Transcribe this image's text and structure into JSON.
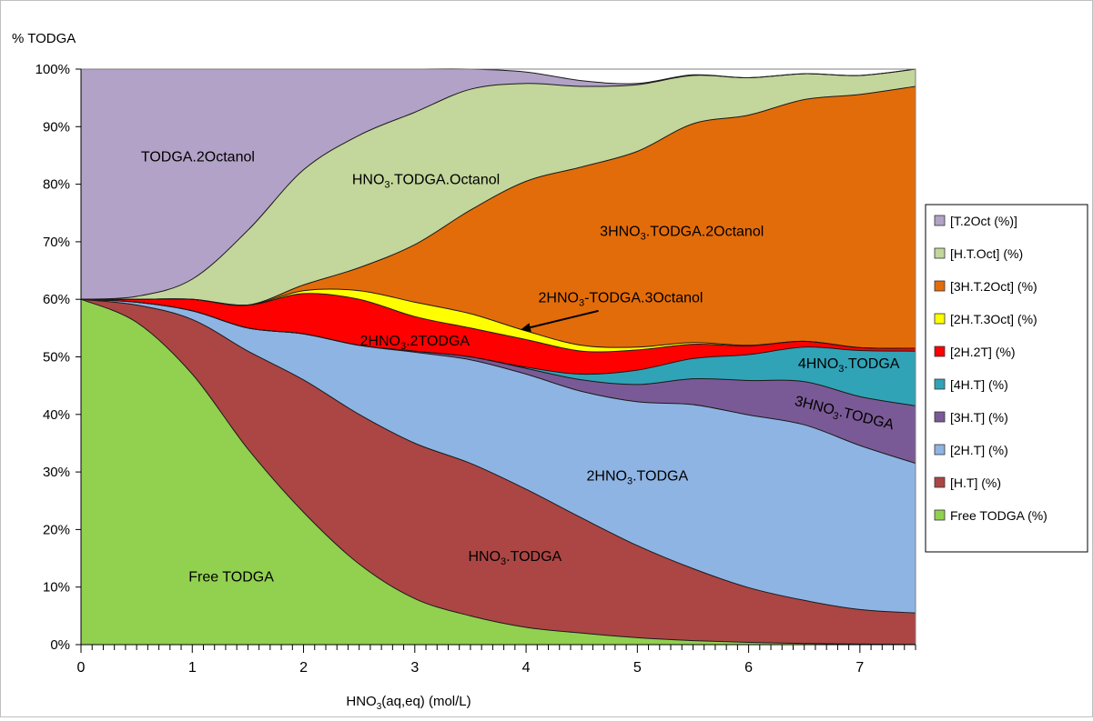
{
  "chart_data": {
    "type": "area",
    "stacked": true,
    "y_axis_title": "% TODGA",
    "x_axis_title": {
      "base": "HNO",
      "sub": "3",
      "rest": "(aq,eq) (mol/L)"
    },
    "xlim": [
      0,
      7.5
    ],
    "ylim": [
      0,
      100
    ],
    "x_ticks": [
      0,
      1,
      2,
      3,
      4,
      5,
      6,
      7
    ],
    "x_minor_step": 0.1,
    "y_ticks": [
      0,
      10,
      20,
      30,
      40,
      50,
      60,
      70,
      80,
      90,
      100
    ],
    "y_tick_labels": [
      "0%",
      "10%",
      "20%",
      "30%",
      "40%",
      "50%",
      "60%",
      "70%",
      "80%",
      "90%",
      "100%"
    ],
    "grid": false,
    "legend_position": "right",
    "x": [
      0,
      0.5,
      1,
      1.5,
      2,
      2.5,
      3,
      3.5,
      4,
      4.5,
      5,
      5.5,
      6,
      6.5,
      7,
      7.5
    ],
    "series": [
      {
        "key": "free",
        "name": "Free TODGA (%)",
        "color": "#92d050",
        "values": [
          60,
          56,
          47,
          34,
          23,
          14,
          8,
          5,
          3,
          2,
          1.2,
          0.7,
          0.4,
          0.2,
          0.1,
          0.05
        ]
      },
      {
        "key": "h_t",
        "name": "[H.T] (%)",
        "color": "#ab4644",
        "values": [
          0,
          3,
          9.5,
          17,
          23,
          26,
          27,
          26.5,
          24,
          20,
          16,
          12.5,
          9.5,
          7.5,
          6,
          5.45
        ]
      },
      {
        "key": "2h_t",
        "name": "[2H.T] (%)",
        "color": "#8eb4e3",
        "values": [
          0,
          0.5,
          1.5,
          4,
          8,
          12,
          15.8,
          18,
          20,
          22,
          25,
          28.5,
          30,
          30.5,
          28.5,
          26
        ]
      },
      {
        "key": "3h_t",
        "name": "[3H.T] (%)",
        "color": "#7a5a96",
        "values": [
          0,
          0,
          0,
          0,
          0,
          0,
          0.2,
          0.5,
          1,
          2,
          3,
          4.5,
          6,
          7.5,
          8.5,
          10
        ]
      },
      {
        "key": "4h_t",
        "name": "[4H.T] (%)",
        "color": "#31a3b7",
        "values": [
          0,
          0,
          0,
          0,
          0,
          0,
          0,
          0,
          0.2,
          1,
          2.5,
          3.5,
          4.5,
          6,
          8,
          9.5
        ]
      },
      {
        "key": "2h_2t",
        "name": "[2H.2T] (%)",
        "color": "#ff0000",
        "values": [
          0,
          0.5,
          2,
          4,
          7,
          8,
          6,
          5,
          4.8,
          4,
          3.5,
          2.5,
          1.5,
          1,
          0.5,
          0.5
        ]
      },
      {
        "key": "2h_t_3oct",
        "name": "[2H.T.3Oct] (%)",
        "color": "#ffff00",
        "values": [
          0,
          0,
          0,
          0,
          0.5,
          1.5,
          2.5,
          2.5,
          1.5,
          1,
          0.5,
          0.3,
          0.1,
          0,
          0,
          0
        ]
      },
      {
        "key": "3h_t_2oct",
        "name": "[3H.T.2Oct] (%)",
        "color": "#e36c0a",
        "values": [
          0,
          0,
          0,
          0,
          1,
          4,
          10,
          18,
          26,
          31,
          34,
          38,
          40,
          42,
          44,
          45.5
        ]
      },
      {
        "key": "h_t_oct",
        "name": "[H.T.Oct] (%)",
        "color": "#c3d69b",
        "values": [
          0,
          0.5,
          3.5,
          13,
          20,
          23,
          23,
          21,
          17,
          14,
          11.6,
          8.4,
          6.5,
          4.5,
          3.3,
          3
        ]
      },
      {
        "key": "t_2oct",
        "name": "[T.2Oct (%)]",
        "color": "#b2a2c7",
        "values": [
          40,
          39.5,
          36.5,
          28,
          17.5,
          11.5,
          7.5,
          3.5,
          2,
          1,
          0.2,
          0.1,
          0,
          0,
          0,
          0
        ]
      }
    ],
    "legend_order": [
      "t_2oct",
      "h_t_oct",
      "3h_t_2oct",
      "2h_t_3oct",
      "2h_2t",
      "4h_t",
      "3h_t",
      "2h_t",
      "h_t",
      "free"
    ],
    "annotations": [
      {
        "series": "t_2oct",
        "at": [
          1.05,
          84
        ],
        "rotate": 0,
        "parts": [
          {
            "t": "TODGA.2Octanol"
          }
        ]
      },
      {
        "series": "h_t_oct",
        "at": [
          3.1,
          80
        ],
        "rotate": 0,
        "parts": [
          {
            "t": "HNO"
          },
          {
            "t": "3",
            "sub": true
          },
          {
            "t": ".TODGA.Octanol"
          }
        ]
      },
      {
        "series": "3h_t_2oct",
        "at": [
          5.4,
          71
        ],
        "rotate": 0,
        "parts": [
          {
            "t": "3HNO"
          },
          {
            "t": "3",
            "sub": true
          },
          {
            "t": ".TODGA.2Octanol"
          }
        ]
      },
      {
        "series": "2h_t_3oct",
        "at": [
          4.85,
          59.5
        ],
        "rotate": 0,
        "parts": [
          {
            "t": "2HNO"
          },
          {
            "t": "3",
            "sub": true
          },
          {
            "t": "-TODGA.3Octanol"
          }
        ]
      },
      {
        "series": "2h_2t",
        "at": [
          3.0,
          52
        ],
        "rotate": 0,
        "parts": [
          {
            "t": "2HNO"
          },
          {
            "t": "3",
            "sub": true
          },
          {
            "t": ".2TODGA"
          }
        ]
      },
      {
        "series": "4h_t",
        "at": [
          6.9,
          48
        ],
        "rotate": 0,
        "parts": [
          {
            "t": "4HNO"
          },
          {
            "t": "3",
            "sub": true
          },
          {
            "t": ".TODGA"
          }
        ]
      },
      {
        "series": "3h_t",
        "at": [
          6.85,
          39.5
        ],
        "rotate": 14,
        "parts": [
          {
            "t": "3HNO"
          },
          {
            "t": "3",
            "sub": true
          },
          {
            "t": ".TODGA"
          }
        ]
      },
      {
        "series": "2h_t",
        "at": [
          5.0,
          28.5
        ],
        "rotate": 0,
        "parts": [
          {
            "t": "2HNO"
          },
          {
            "t": "3",
            "sub": true
          },
          {
            "t": ".TODGA"
          }
        ]
      },
      {
        "series": "h_t",
        "at": [
          3.9,
          14.5
        ],
        "rotate": 0,
        "parts": [
          {
            "t": "HNO"
          },
          {
            "t": "3",
            "sub": true
          },
          {
            "t": ".TODGA"
          }
        ]
      },
      {
        "series": "free",
        "at": [
          1.35,
          11
        ],
        "rotate": 0,
        "parts": [
          {
            "t": "Free TODGA"
          }
        ]
      }
    ],
    "arrow": {
      "from": [
        4.65,
        58
      ],
      "to": [
        3.95,
        54.7
      ]
    }
  }
}
